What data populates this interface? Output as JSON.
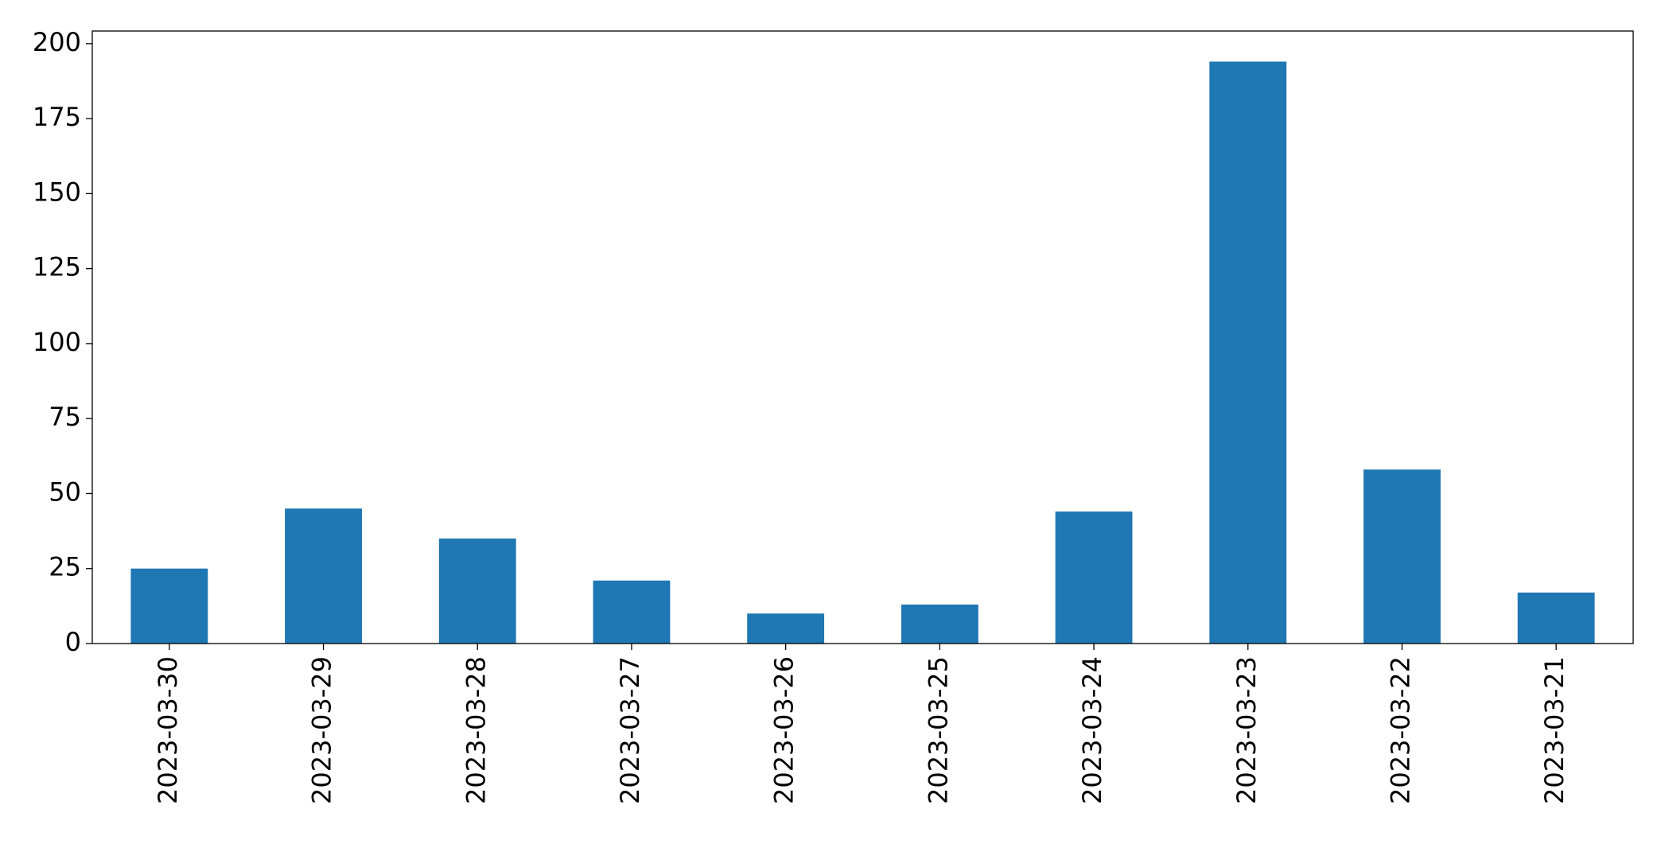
{
  "chart_data": {
    "type": "bar",
    "categories": [
      "2023-03-30",
      "2023-03-29",
      "2023-03-28",
      "2023-03-27",
      "2023-03-26",
      "2023-03-25",
      "2023-03-24",
      "2023-03-23",
      "2023-03-22",
      "2023-03-21"
    ],
    "values": [
      25,
      45,
      35,
      21,
      10,
      13,
      44,
      194,
      58,
      17
    ],
    "color": "#1f77b4",
    "ylim": [
      0,
      204.2
    ],
    "yticks": [
      0,
      25,
      50,
      75,
      100,
      125,
      150,
      175,
      200
    ],
    "grid": false
  }
}
